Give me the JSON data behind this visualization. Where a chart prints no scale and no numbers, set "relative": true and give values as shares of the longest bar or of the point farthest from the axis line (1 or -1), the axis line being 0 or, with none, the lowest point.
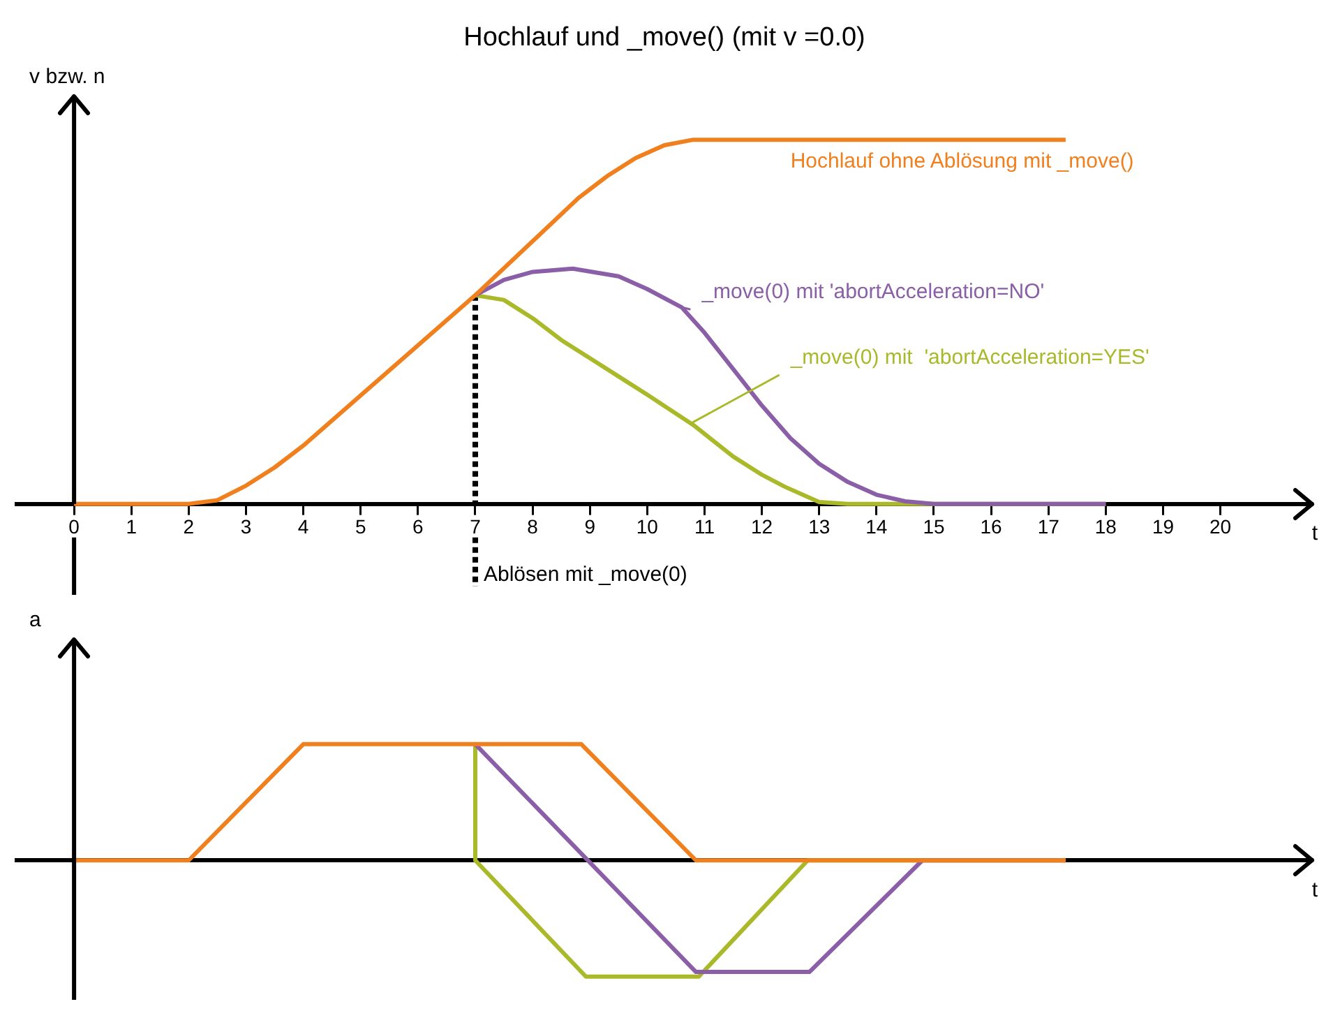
{
  "chart_data": [
    {
      "type": "line",
      "title": "Hochlauf und _move() (mit v =0.0)",
      "xlabel": "t",
      "ylabel": "v bzw. n",
      "relative": true,
      "marker": "none",
      "xlim": [
        -1,
        21.6
      ],
      "xticks": [
        0,
        1,
        2,
        3,
        4,
        5,
        6,
        7,
        8,
        9,
        10,
        11,
        12,
        13,
        14,
        15,
        16,
        17,
        18,
        19,
        20
      ],
      "series": [
        {
          "name": "Hochlauf ohne Ablösung mit _move()",
          "color": "#f07f1e",
          "x": [
            0,
            2,
            2.5,
            3,
            3.5,
            4,
            7,
            8.8,
            9.3,
            9.8,
            10.3,
            10.8,
            17.3
          ],
          "values": [
            0,
            0,
            0.01,
            0.05,
            0.1,
            0.16,
            0.573,
            0.84,
            0.9,
            0.95,
            0.985,
            1,
            1
          ]
        },
        {
          "name": "_move(0) mit 'abortAcceleration=NO'",
          "color": "#8b5ea8",
          "x": [
            7,
            7.5,
            8,
            8.7,
            9.5,
            10,
            10.6,
            11,
            11.5,
            12,
            12.5,
            13,
            13.5,
            14,
            14.5,
            15,
            18
          ],
          "values": [
            0.573,
            0.615,
            0.637,
            0.646,
            0.625,
            0.59,
            0.54,
            0.47,
            0.37,
            0.27,
            0.18,
            0.11,
            0.06,
            0.025,
            0.007,
            0,
            0
          ]
        },
        {
          "name": "_move(0) mit  'abortAcceleration=YES'",
          "color": "#a9b92a",
          "x": [
            7,
            7.5,
            8,
            8.5,
            9,
            9.5,
            10,
            10.8,
            11.5,
            12,
            12.4,
            13,
            13.5,
            18
          ],
          "values": [
            0.573,
            0.56,
            0.51,
            0.45,
            0.4,
            0.35,
            0.3,
            0.217,
            0.13,
            0.08,
            0.047,
            0.005,
            0,
            0
          ]
        }
      ],
      "ref_lines": [
        {
          "axis": "x",
          "value": 7,
          "label": "Ablösen mit _move(0)",
          "color": "#000000",
          "line_style": "dashed"
        }
      ]
    },
    {
      "type": "line",
      "xlabel": "t",
      "ylabel": "a",
      "relative": true,
      "marker": "none",
      "xlim": [
        -1,
        21.6
      ],
      "tick_labels": false,
      "series": [
        {
          "color": "#f07f1e",
          "x": [
            0,
            2,
            4,
            8.85,
            10.85,
            17.3
          ],
          "values": [
            0,
            0,
            1,
            1,
            0,
            0
          ]
        },
        {
          "color": "#8b5ea8",
          "x": [
            7,
            10.85,
            12.83,
            14.8,
            17.3
          ],
          "values": [
            1,
            -0.96,
            -0.96,
            0,
            0
          ]
        },
        {
          "color": "#a9b92a",
          "x": [
            7,
            7,
            8.93,
            10.9,
            12.8,
            17.3
          ],
          "values": [
            1,
            0,
            -1,
            -1,
            0,
            0
          ]
        }
      ]
    }
  ]
}
